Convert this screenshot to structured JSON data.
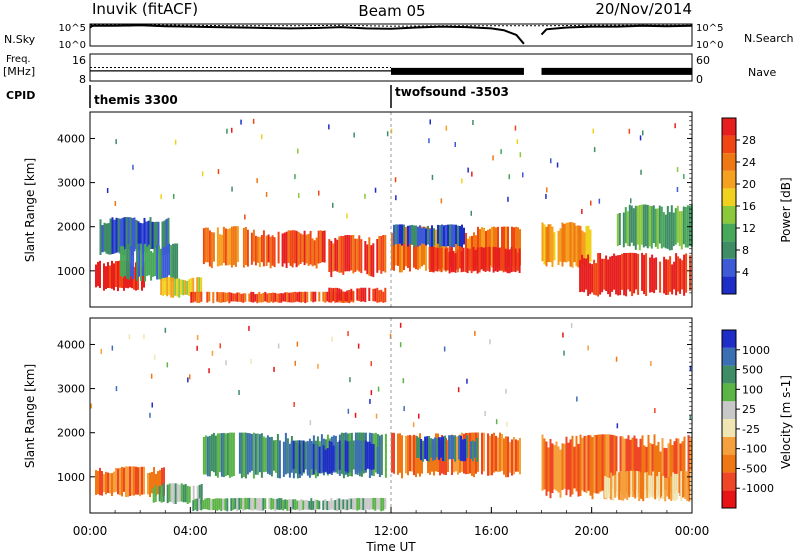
{
  "header": {
    "station": "Inuvik (fitACF)",
    "beam": "Beam 05",
    "date": "20/Nov/2014"
  },
  "strip_labels": {
    "nsky": "N.Sky",
    "freq_line1": "Freq.",
    "freq_line2": "[MHz]",
    "cpid": "CPID",
    "nsearch": "N.Search",
    "nave": "Nave"
  },
  "cpid_segments": [
    {
      "name": "themis 3300",
      "start": 0
    },
    {
      "name": "twofsound -3503",
      "start": 12
    }
  ],
  "colors": {
    "power": [
      "#1e2cc8",
      "#3d5bd6",
      "#3e8d64",
      "#47a85a",
      "#8cc83c",
      "#f0d21e",
      "#f5a01e",
      "#f07814",
      "#f04614",
      "#e61e1e"
    ],
    "velocity": [
      "#e61414",
      "#f04628",
      "#f07814",
      "#f5a03c",
      "#f0e6b4",
      "#c8c8c8",
      "#5ab446",
      "#3e8d64",
      "#3c6eb4",
      "#1e2cc8"
    ]
  },
  "chart_data": [
    {
      "type": "line",
      "title": "N.Sky / N.Search",
      "ylabels": [
        "10^5",
        "10^0"
      ],
      "right_ylabels": [
        "10^5",
        "10^0"
      ],
      "xlim": [
        0,
        24
      ],
      "series": [
        {
          "name": "N.Sky",
          "x": [
            0,
            0.1,
            1,
            2,
            3,
            4,
            5,
            6,
            7,
            8,
            9,
            10,
            11,
            12,
            13,
            14,
            15,
            16,
            16.5,
            17,
            17.3,
            17.4,
            18,
            18.2,
            19,
            20,
            21,
            22,
            23,
            24
          ],
          "values": [
            4.2,
            4.6,
            4.6,
            4.7,
            4.5,
            4.4,
            4.3,
            4.2,
            4.1,
            4.0,
            4.1,
            4.3,
            4.0,
            3.9,
            4.2,
            4.4,
            4.3,
            4.0,
            3.6,
            2.5,
            0.5,
            null,
            2.6,
            3.8,
            4.2,
            4.4,
            4.4,
            4.6,
            4.5,
            4.6
          ]
        },
        {
          "name": "N.Search",
          "x": [
            0,
            2,
            4,
            6,
            8,
            10,
            12,
            14,
            16,
            17.3,
            18,
            20,
            22,
            24
          ],
          "values": [
            4.8,
            4.8,
            4.7,
            4.6,
            4.6,
            4.7,
            4.5,
            4.6,
            4.6,
            4.6,
            4.6,
            4.7,
            4.7,
            4.7
          ]
        }
      ]
    },
    {
      "type": "line",
      "title": "Freq. / Nave",
      "yticks": [
        "16",
        "8"
      ],
      "right_yticks": [
        "60",
        "0"
      ],
      "xlim": [
        0,
        24
      ],
      "series": [
        {
          "name": "Freq.",
          "x": [
            0,
            12,
            17.3,
            17.4,
            18,
            24
          ],
          "values": [
            11,
            11,
            11,
            null,
            11,
            11
          ]
        },
        {
          "name": "Nave",
          "x": [
            0,
            12,
            24
          ],
          "values": [
            13,
            13,
            13
          ]
        }
      ]
    },
    {
      "type": "heatmap",
      "title": "Power",
      "ylabel": "Slant Range [km]",
      "yticks": [
        1000,
        2000,
        3000,
        4000
      ],
      "ylim": [
        180,
        4600
      ],
      "xlim": [
        0,
        24
      ],
      "colorbar_label": "Power [dB]",
      "colorbar_ticks": [
        "28",
        "24",
        "20",
        "16",
        "12",
        "8",
        "4"
      ],
      "bands": [
        {
          "t0": 0.2,
          "t1": 2.2,
          "r0": 500,
          "r1": 1300,
          "level": 9
        },
        {
          "t0": 0.3,
          "t1": 3.2,
          "r0": 1300,
          "r1": 2300,
          "level": 1
        },
        {
          "t0": 1.2,
          "t1": 3.5,
          "r0": 700,
          "r1": 1700,
          "level": 2
        },
        {
          "t0": 2.8,
          "t1": 4.5,
          "r0": 350,
          "r1": 900,
          "level": 5
        },
        {
          "t0": 4.0,
          "t1": 10.5,
          "r0": 250,
          "r1": 550,
          "level": 8
        },
        {
          "t0": 9.5,
          "t1": 11.8,
          "r0": 250,
          "r1": 650,
          "level": 9
        },
        {
          "t0": 4.5,
          "t1": 7.0,
          "r0": 1000,
          "r1": 2100,
          "level": 7
        },
        {
          "t0": 7.0,
          "t1": 9.5,
          "r0": 1000,
          "r1": 2000,
          "level": 8
        },
        {
          "t0": 9.5,
          "t1": 11.8,
          "r0": 800,
          "r1": 1900,
          "level": 8
        },
        {
          "t0": 12.0,
          "t1": 17.2,
          "r0": 900,
          "r1": 2100,
          "level": 7
        },
        {
          "t0": 12.0,
          "t1": 15.0,
          "r0": 1500,
          "r1": 2100,
          "level": 1
        },
        {
          "t0": 13.5,
          "t1": 17.2,
          "r0": 900,
          "r1": 1600,
          "level": 9
        },
        {
          "t0": 18.0,
          "t1": 20.0,
          "r0": 1000,
          "r1": 2200,
          "level": 6
        },
        {
          "t0": 19.5,
          "t1": 24.0,
          "r0": 350,
          "r1": 1500,
          "level": 9
        },
        {
          "t0": 21.0,
          "t1": 24.0,
          "r0": 1400,
          "r1": 2600,
          "level": 3
        }
      ]
    },
    {
      "type": "heatmap",
      "title": "Velocity",
      "ylabel": "Slant Range [km]",
      "xlabel": "Time UT",
      "xticks": [
        "00:00",
        "04:00",
        "08:00",
        "12:00",
        "16:00",
        "20:00",
        "00:00"
      ],
      "yticks": [
        1000,
        2000,
        3000,
        4000
      ],
      "ylim": [
        180,
        4600
      ],
      "xlim": [
        0,
        24
      ],
      "colorbar_label": "Velocity [m s-1]",
      "colorbar_ticks": [
        "1000",
        "500",
        "100",
        "25",
        "-25",
        "-100",
        "-500",
        "-1000"
      ],
      "bands": [
        {
          "t0": 0.2,
          "t1": 3.0,
          "r0": 500,
          "r1": 1300,
          "level": 2
        },
        {
          "t0": 2.5,
          "t1": 4.5,
          "r0": 350,
          "r1": 900,
          "level": 6
        },
        {
          "t0": 4.0,
          "t1": 11.8,
          "r0": 200,
          "r1": 550,
          "level": 6
        },
        {
          "t0": 4.5,
          "t1": 11.8,
          "r0": 900,
          "r1": 2100,
          "level": 7
        },
        {
          "t0": 8.0,
          "t1": 11.5,
          "r0": 1000,
          "r1": 1900,
          "level": 8
        },
        {
          "t0": 12.0,
          "t1": 17.2,
          "r0": 900,
          "r1": 2100,
          "level": 2
        },
        {
          "t0": 13.0,
          "t1": 15.5,
          "r0": 1300,
          "r1": 2000,
          "level": 8
        },
        {
          "t0": 18.0,
          "t1": 24.0,
          "r0": 400,
          "r1": 2100,
          "level": 2
        },
        {
          "t0": 20.5,
          "t1": 24.0,
          "r0": 400,
          "r1": 1200,
          "level": 3
        }
      ]
    }
  ]
}
